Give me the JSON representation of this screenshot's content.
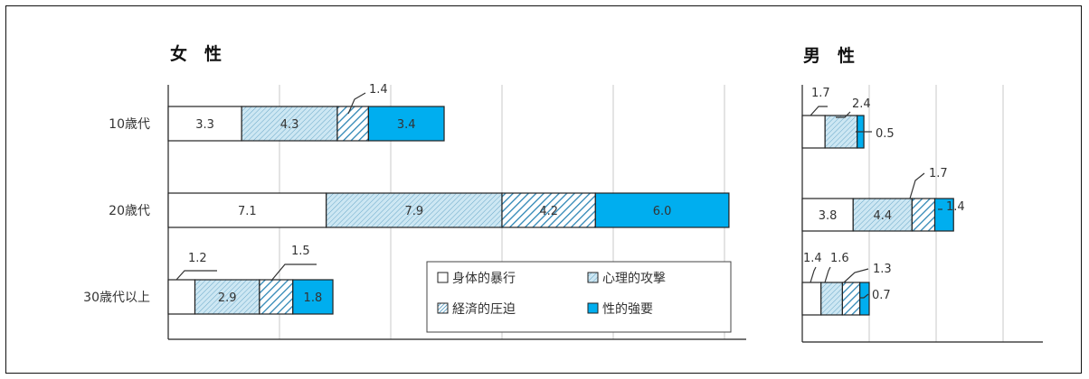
{
  "colors": {
    "physical": "#ffffff",
    "psychological": "#cde7f3",
    "economic": "#cde7f3",
    "sexual": "#00aeef",
    "hatch": "#3a8ab0",
    "edge": "#222222",
    "grid": "#c8c8c8"
  },
  "chart_data": [
    {
      "type": "bar",
      "orientation": "horizontal",
      "stacked": true,
      "title": "女　性",
      "categories": [
        "10歳代",
        "20歳代",
        "30歳代以上"
      ],
      "series": [
        {
          "name": "身体的暴行",
          "values": [
            3.3,
            7.1,
            1.2
          ]
        },
        {
          "name": "心理的攻撃",
          "values": [
            4.3,
            7.9,
            2.9
          ]
        },
        {
          "name": "経済的圧迫",
          "values": [
            1.4,
            4.2,
            1.5
          ]
        },
        {
          "name": "性的強要",
          "values": [
            3.4,
            6.0,
            1.8
          ]
        }
      ],
      "xlim": [
        0,
        25
      ],
      "grid": true,
      "legend_position": "bottom-right"
    },
    {
      "type": "bar",
      "orientation": "horizontal",
      "stacked": true,
      "title": "男　性",
      "categories": [
        "10歳代",
        "20歳代",
        "30歳代以上"
      ],
      "series": [
        {
          "name": "身体的暴行",
          "values": [
            1.7,
            3.8,
            1.4
          ]
        },
        {
          "name": "心理的攻撃",
          "values": [
            2.4,
            4.4,
            1.6
          ]
        },
        {
          "name": "経済的圧迫",
          "values": [
            0,
            1.7,
            1.3
          ]
        },
        {
          "name": "性的強要",
          "values": [
            0.5,
            1.4,
            0.7
          ]
        }
      ],
      "xlim": [
        0,
        20
      ],
      "grid": true
    }
  ]
}
